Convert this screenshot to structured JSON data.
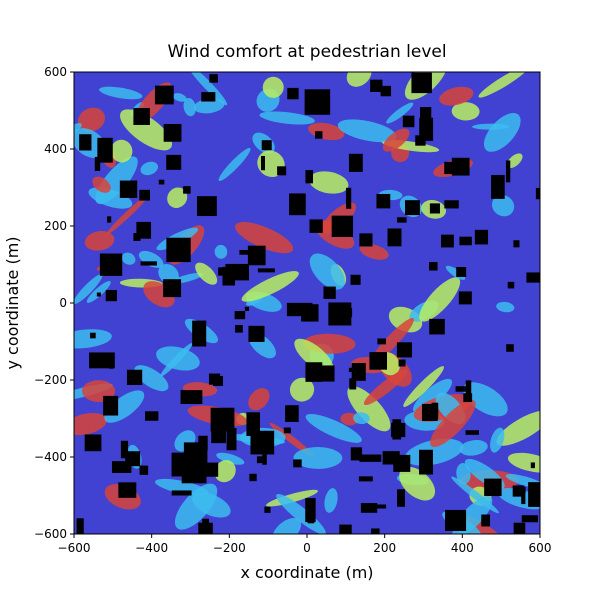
{
  "chart_data": {
    "type": "heatmap",
    "title": "Wind comfort at pedestrian level",
    "xlabel": "x coordinate (m)",
    "ylabel": "y coordinate (m)",
    "xlim": [
      -600,
      600
    ],
    "ylim": [
      -600,
      600
    ],
    "xticks": [
      {
        "value": -600,
        "label": "−600"
      },
      {
        "value": -400,
        "label": "−400"
      },
      {
        "value": -200,
        "label": "−200"
      },
      0,
      200,
      400,
      600
    ],
    "yticks": [
      {
        "value": -600,
        "label": "−600"
      },
      {
        "value": -400,
        "label": "−400"
      },
      {
        "value": -200,
        "label": "−200"
      },
      0,
      200,
      400,
      600
    ]
  }
}
